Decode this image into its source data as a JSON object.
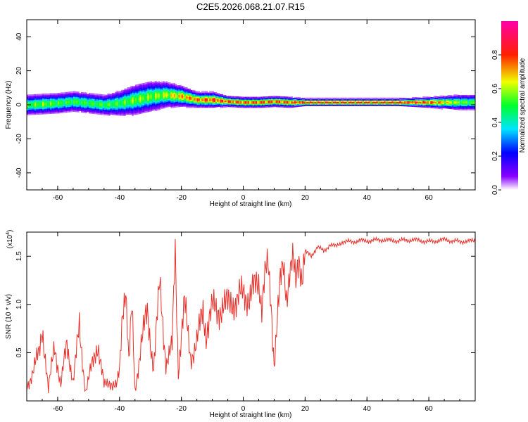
{
  "title": "C2E5.2026.068.21.07.R15",
  "chart_data": [
    {
      "type": "heatmap",
      "xlabel": "Height of straight line (km)",
      "ylabel": "Frequency (Hz)",
      "xlim": [
        -70,
        75
      ],
      "ylim": [
        -50,
        50
      ],
      "xticks": [
        -60,
        -40,
        -20,
        0,
        20,
        40,
        60
      ],
      "yticks": [
        -40,
        -20,
        0,
        20,
        40
      ],
      "colorbar": {
        "label": "Normalized spectral amplitude",
        "range": [
          0.0,
          1.0
        ],
        "ticks": [
          "0.0",
          "0.2",
          "0.4",
          "0.6",
          "0.8"
        ],
        "tick_values": [
          0.0,
          0.2,
          0.4,
          0.6,
          0.8
        ],
        "colormap": "rainbow (white-violet-blue-cyan-green-yellow-red-magenta)"
      },
      "ridge": {
        "description": "dominant frequency trace vs height",
        "x": [
          -70,
          -65,
          -60,
          -55,
          -50,
          -45,
          -40,
          -35,
          -30,
          -25,
          -20,
          -15,
          -10,
          -5,
          0,
          5,
          10,
          15,
          20,
          30,
          40,
          50,
          60,
          70,
          75
        ],
        "frequency": [
          0,
          0.5,
          1,
          2,
          1,
          0,
          1,
          3,
          5,
          6,
          5,
          3,
          3,
          2,
          1.5,
          1.5,
          2,
          1.5,
          1.5,
          1.5,
          1.5,
          1.5,
          1.5,
          1.5,
          1.5
        ],
        "spread": [
          4,
          4,
          4,
          4,
          4,
          4,
          5,
          6,
          6,
          5,
          4,
          3,
          3,
          2,
          2,
          2,
          2,
          2,
          1.5,
          1.5,
          1.5,
          1.5,
          2,
          3,
          3
        ],
        "peak_amplitude": [
          0.55,
          0.6,
          0.55,
          0.55,
          0.55,
          0.55,
          0.55,
          0.6,
          0.6,
          0.65,
          0.75,
          0.8,
          0.85,
          0.85,
          0.85,
          0.85,
          0.85,
          0.85,
          0.9,
          0.9,
          0.9,
          0.9,
          0.85,
          0.6,
          0.55
        ]
      }
    },
    {
      "type": "line",
      "xlabel": "Height of straight line (km)",
      "ylabel": "SNR (10 * v/v)",
      "scale_note": "(x10",
      "scale_exp": "4",
      "xlim": [
        -70,
        75
      ],
      "ylim": [
        0,
        1.75
      ],
      "xticks": [
        -60,
        -40,
        -20,
        0,
        20,
        40,
        60
      ],
      "yticks": [
        "0.5",
        "1.0",
        "1.5"
      ],
      "ytick_values": [
        0.5,
        1.0,
        1.5
      ],
      "series": [
        {
          "color": "#e8302a",
          "x": [
            -70,
            -68,
            -66,
            -65,
            -63,
            -61,
            -59,
            -57,
            -55,
            -53,
            -51,
            -49,
            -47,
            -45,
            -43,
            -41,
            -40,
            -39,
            -38,
            -37,
            -36,
            -35,
            -33,
            -31,
            -29,
            -27,
            -25,
            -23,
            -22,
            -21,
            -20,
            -19,
            -17,
            -15,
            -13,
            -12,
            -11,
            -10,
            -8,
            -6,
            -4,
            -2,
            0,
            2,
            4,
            5,
            6,
            7,
            8,
            9,
            10,
            11,
            12,
            13,
            14,
            15,
            16,
            17,
            18,
            19,
            20,
            22,
            24,
            26,
            28,
            30,
            32,
            35,
            38,
            40,
            45,
            50,
            55,
            60,
            65,
            70,
            75
          ],
          "values": [
            0.15,
            0.3,
            0.5,
            0.78,
            0.1,
            0.6,
            0.15,
            0.6,
            0.2,
            0.75,
            0.1,
            0.35,
            0.6,
            0.15,
            0.2,
            0.15,
            0.3,
            0.95,
            1.2,
            0.4,
            0.95,
            0.1,
            0.6,
            0.9,
            0.35,
            1.2,
            0.4,
            0.55,
            1.57,
            0.3,
            0.7,
            1.0,
            0.45,
            0.6,
            0.95,
            0.7,
            0.85,
            0.95,
            0.95,
            0.97,
            1.05,
            1.0,
            1.15,
            1.05,
            1.2,
            1.25,
            1.0,
            1.3,
            1.38,
            1.0,
            0.4,
            0.85,
            1.2,
            1.4,
            1.1,
            1.35,
            1.45,
            1.2,
            1.5,
            1.3,
            1.55,
            1.5,
            1.6,
            1.55,
            1.62,
            1.6,
            1.65,
            1.65,
            1.66,
            1.66,
            1.67,
            1.66,
            1.67,
            1.65,
            1.67,
            1.65,
            1.66
          ]
        }
      ]
    }
  ]
}
